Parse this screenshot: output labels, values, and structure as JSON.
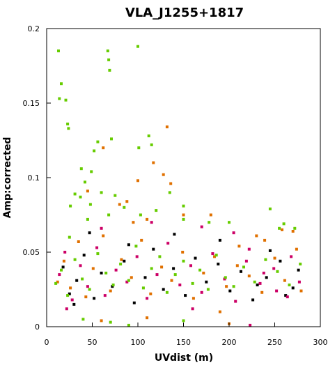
{
  "chart_data": {
    "type": "scatter",
    "title": "VLA_J1255+1817",
    "xlabel": "UVdist (m)",
    "ylabel": "Amp:corrected",
    "xlim": [
      0,
      300
    ],
    "ylim": [
      0,
      0.2
    ],
    "x_ticks": [
      "0",
      "50",
      "100",
      "150",
      "200",
      "250",
      "300"
    ],
    "y_ticks": [
      "0",
      "0.05",
      "0.1",
      "0.15",
      "0.2"
    ],
    "grid": false,
    "legend": "none",
    "series": [
      {
        "color": "#000000",
        "points": [
          [
            18,
            0.04
          ],
          [
            25,
            0.022
          ],
          [
            33,
            0.031
          ],
          [
            41,
            0.048
          ],
          [
            52,
            0.019
          ],
          [
            60,
            0.036
          ],
          [
            72,
            0.027
          ],
          [
            85,
            0.044
          ],
          [
            96,
            0.016
          ],
          [
            108,
            0.033
          ],
          [
            117,
            0.052
          ],
          [
            128,
            0.025
          ],
          [
            139,
            0.039
          ],
          [
            152,
            0.021
          ],
          [
            163,
            0.046
          ],
          [
            175,
            0.03
          ],
          [
            188,
            0.042
          ],
          [
            201,
            0.024
          ],
          [
            213,
            0.037
          ],
          [
            226,
            0.018
          ],
          [
            241,
            0.033
          ],
          [
            256,
            0.044
          ],
          [
            270,
            0.026
          ],
          [
            276,
            0.038
          ],
          [
            262,
            0.021
          ],
          [
            245,
            0.051
          ],
          [
            231,
            0.028
          ],
          [
            190,
            0.058
          ],
          [
            140,
            0.062
          ],
          [
            90,
            0.055
          ],
          [
            47,
            0.063
          ],
          [
            30,
            0.015
          ]
        ]
      },
      {
        "color": "#cc0066",
        "points": [
          [
            14,
            0.035
          ],
          [
            20,
            0.05
          ],
          [
            28,
            0.018
          ],
          [
            37,
            0.041
          ],
          [
            45,
            0.027
          ],
          [
            55,
            0.053
          ],
          [
            64,
            0.021
          ],
          [
            76,
            0.038
          ],
          [
            88,
            0.03
          ],
          [
            99,
            0.047
          ],
          [
            110,
            0.019
          ],
          [
            121,
            0.035
          ],
          [
            133,
            0.056
          ],
          [
            146,
            0.028
          ],
          [
            158,
            0.041
          ],
          [
            170,
            0.023
          ],
          [
            182,
            0.049
          ],
          [
            195,
            0.032
          ],
          [
            207,
            0.017
          ],
          [
            219,
            0.044
          ],
          [
            234,
            0.029
          ],
          [
            249,
            0.039
          ],
          [
            264,
            0.02
          ],
          [
            277,
            0.03
          ],
          [
            268,
            0.047
          ],
          [
            252,
            0.024
          ],
          [
            238,
            0.036
          ],
          [
            222,
            0.052
          ],
          [
            205,
            0.063
          ],
          [
            170,
            0.067
          ],
          [
            115,
            0.07
          ],
          [
            60,
            0.066
          ],
          [
            22,
            0.012
          ],
          [
            160,
            0.012
          ],
          [
            223,
            0.001
          ]
        ]
      },
      {
        "color": "#e07000",
        "points": [
          [
            12,
            0.03
          ],
          [
            19,
            0.044
          ],
          [
            26,
            0.026
          ],
          [
            35,
            0.057
          ],
          [
            43,
            0.02
          ],
          [
            51,
            0.039
          ],
          [
            62,
            0.061
          ],
          [
            70,
            0.024
          ],
          [
            82,
            0.045
          ],
          [
            93,
            0.033
          ],
          [
            104,
            0.058
          ],
          [
            114,
            0.022
          ],
          [
            126,
            0.04
          ],
          [
            137,
            0.031
          ],
          [
            149,
            0.05
          ],
          [
            161,
            0.019
          ],
          [
            172,
            0.036
          ],
          [
            184,
            0.047
          ],
          [
            197,
            0.027
          ],
          [
            209,
            0.041
          ],
          [
            222,
            0.034
          ],
          [
            236,
            0.023
          ],
          [
            250,
            0.046
          ],
          [
            261,
            0.031
          ],
          [
            274,
            0.052
          ],
          [
            279,
            0.024
          ],
          [
            258,
            0.065
          ],
          [
            239,
            0.058
          ],
          [
            211,
            0.054
          ],
          [
            180,
            0.075
          ],
          [
            132,
            0.134
          ],
          [
            117,
            0.11
          ],
          [
            100,
            0.098
          ],
          [
            88,
            0.084
          ],
          [
            80,
            0.082
          ],
          [
            62,
            0.12
          ],
          [
            45,
            0.091
          ],
          [
            136,
            0.096
          ],
          [
            128,
            0.102
          ],
          [
            95,
            0.07
          ],
          [
            110,
            0.072
          ],
          [
            150,
            0.075
          ],
          [
            230,
            0.061
          ],
          [
            270,
            0.064
          ],
          [
            200,
            0.002
          ],
          [
            190,
            0.01
          ],
          [
            110,
            0.006
          ],
          [
            60,
            0.004
          ]
        ]
      },
      {
        "color": "#66cc00",
        "points": [
          [
            10,
            0.029
          ],
          [
            16,
            0.038
          ],
          [
            23,
            0.021
          ],
          [
            31,
            0.045
          ],
          [
            39,
            0.032
          ],
          [
            47,
            0.025
          ],
          [
            56,
            0.049
          ],
          [
            65,
            0.036
          ],
          [
            73,
            0.028
          ],
          [
            81,
            0.042
          ],
          [
            90,
            0.031
          ],
          [
            98,
            0.054
          ],
          [
            106,
            0.026
          ],
          [
            115,
            0.039
          ],
          [
            124,
            0.047
          ],
          [
            132,
            0.023
          ],
          [
            141,
            0.035
          ],
          [
            150,
            0.044
          ],
          [
            160,
            0.029
          ],
          [
            168,
            0.038
          ],
          [
            177,
            0.025
          ],
          [
            186,
            0.048
          ],
          [
            196,
            0.033
          ],
          [
            205,
            0.027
          ],
          [
            216,
            0.04
          ],
          [
            228,
            0.03
          ],
          [
            240,
            0.045
          ],
          [
            253,
            0.037
          ],
          [
            266,
            0.028
          ],
          [
            278,
            0.042
          ],
          [
            272,
            0.066
          ],
          [
            255,
            0.066
          ],
          [
            200,
            0.07
          ],
          [
            178,
            0.07
          ],
          [
            150,
            0.072
          ],
          [
            120,
            0.078
          ],
          [
            103,
            0.075
          ],
          [
            85,
            0.08
          ],
          [
            68,
            0.075
          ],
          [
            45,
            0.072
          ],
          [
            25,
            0.06
          ],
          [
            13,
            0.185
          ],
          [
            14,
            0.153
          ],
          [
            16,
            0.163
          ],
          [
            21,
            0.152
          ],
          [
            23,
            0.136
          ],
          [
            24,
            0.133
          ],
          [
            67,
            0.185
          ],
          [
            68,
            0.179
          ],
          [
            69,
            0.172
          ],
          [
            100,
            0.188
          ],
          [
            56,
            0.124
          ],
          [
            71,
            0.126
          ],
          [
            112,
            0.128
          ],
          [
            115,
            0.122
          ],
          [
            101,
            0.12
          ],
          [
            52,
            0.118
          ],
          [
            49,
            0.104
          ],
          [
            38,
            0.106
          ],
          [
            42,
            0.097
          ],
          [
            31,
            0.089
          ],
          [
            37,
            0.087
          ],
          [
            48,
            0.082
          ],
          [
            26,
            0.081
          ],
          [
            60,
            0.09
          ],
          [
            75,
            0.088
          ],
          [
            135,
            0.09
          ],
          [
            150,
            0.081
          ],
          [
            245,
            0.079
          ],
          [
            260,
            0.069
          ],
          [
            90,
            0.001
          ],
          [
            40,
            0.005
          ],
          [
            70,
            0.003
          ],
          [
            150,
            0.004
          ]
        ]
      }
    ]
  }
}
